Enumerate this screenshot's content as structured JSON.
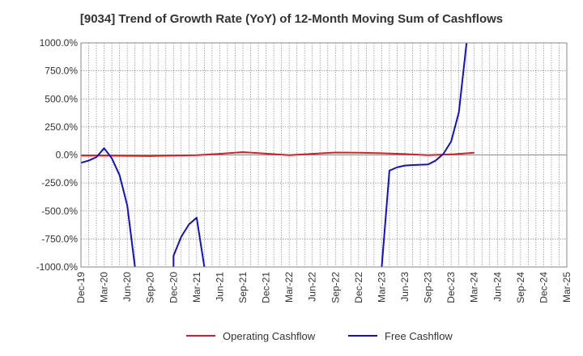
{
  "chart_data": {
    "type": "line",
    "title": "[9034]  Trend of Growth Rate (YoY) of 12-Month Moving Sum of Cashflows",
    "xlabel": "",
    "ylabel": "",
    "x_ticks": [
      "Dec-19",
      "Mar-20",
      "Jun-20",
      "Sep-20",
      "Dec-20",
      "Mar-21",
      "Jun-21",
      "Sep-21",
      "Dec-21",
      "Mar-22",
      "Jun-22",
      "Sep-22",
      "Dec-22",
      "Mar-23",
      "Jun-23",
      "Sep-23",
      "Dec-23",
      "Mar-24",
      "Jun-24",
      "Sep-24",
      "Dec-24",
      "Mar-25"
    ],
    "y_ticks": [
      "1000.0%",
      "750.0%",
      "500.0%",
      "250.0%",
      "0.0%",
      "-250.0%",
      "-500.0%",
      "-750.0%",
      "-1000.0%"
    ],
    "ylim": [
      -1000,
      1000
    ],
    "y_unit": "%",
    "grid": true,
    "legend_position": "bottom",
    "series": [
      {
        "name": "Operating Cashflow",
        "color": "#e31a1c",
        "points": [
          [
            "Dec-19",
            -5
          ],
          [
            "Mar-20",
            -5
          ],
          [
            "Jun-20",
            -8
          ],
          [
            "Sep-20",
            -10
          ],
          [
            "Dec-20",
            -5
          ],
          [
            "Mar-21",
            -2
          ],
          [
            "Jun-21",
            10
          ],
          [
            "Sep-21",
            25
          ],
          [
            "Dec-21",
            12
          ],
          [
            "Mar-22",
            -2
          ],
          [
            "Jun-22",
            10
          ],
          [
            "Sep-22",
            22
          ],
          [
            "Dec-22",
            20
          ],
          [
            "Mar-23",
            15
          ],
          [
            "Jun-23",
            8
          ],
          [
            "Sep-23",
            -2
          ],
          [
            "Dec-23",
            5
          ],
          [
            "Mar-24",
            20
          ]
        ]
      },
      {
        "name": "Free Cashflow",
        "color": "#1010d0",
        "points": [
          [
            "Dec-19",
            -70
          ],
          [
            "Jan-20",
            -50
          ],
          [
            "Feb-20",
            -20
          ],
          [
            "Mar-20",
            60
          ],
          [
            "Apr-20",
            -30
          ],
          [
            "May-20",
            -180
          ],
          [
            "Jun-20",
            -450
          ],
          [
            "Jul-20",
            -1000
          ],
          null,
          [
            "Dec-20",
            -1000
          ],
          [
            "Dec-20",
            -900
          ],
          [
            "Jan-21",
            -730
          ],
          [
            "Feb-21",
            -620
          ],
          [
            "Mar-21",
            -560
          ],
          [
            "Apr-21",
            -1000
          ],
          null,
          [
            "Mar-23",
            -1000
          ],
          [
            "Apr-23",
            -140
          ],
          [
            "May-23",
            -110
          ],
          [
            "Jun-23",
            -95
          ],
          [
            "Jul-23",
            -90
          ],
          [
            "Sep-23",
            -85
          ],
          [
            "Oct-23",
            -50
          ],
          [
            "Nov-23",
            10
          ],
          [
            "Dec-23",
            120
          ],
          [
            "Jan-24",
            380
          ],
          [
            "Feb-24",
            1000
          ]
        ]
      }
    ]
  }
}
